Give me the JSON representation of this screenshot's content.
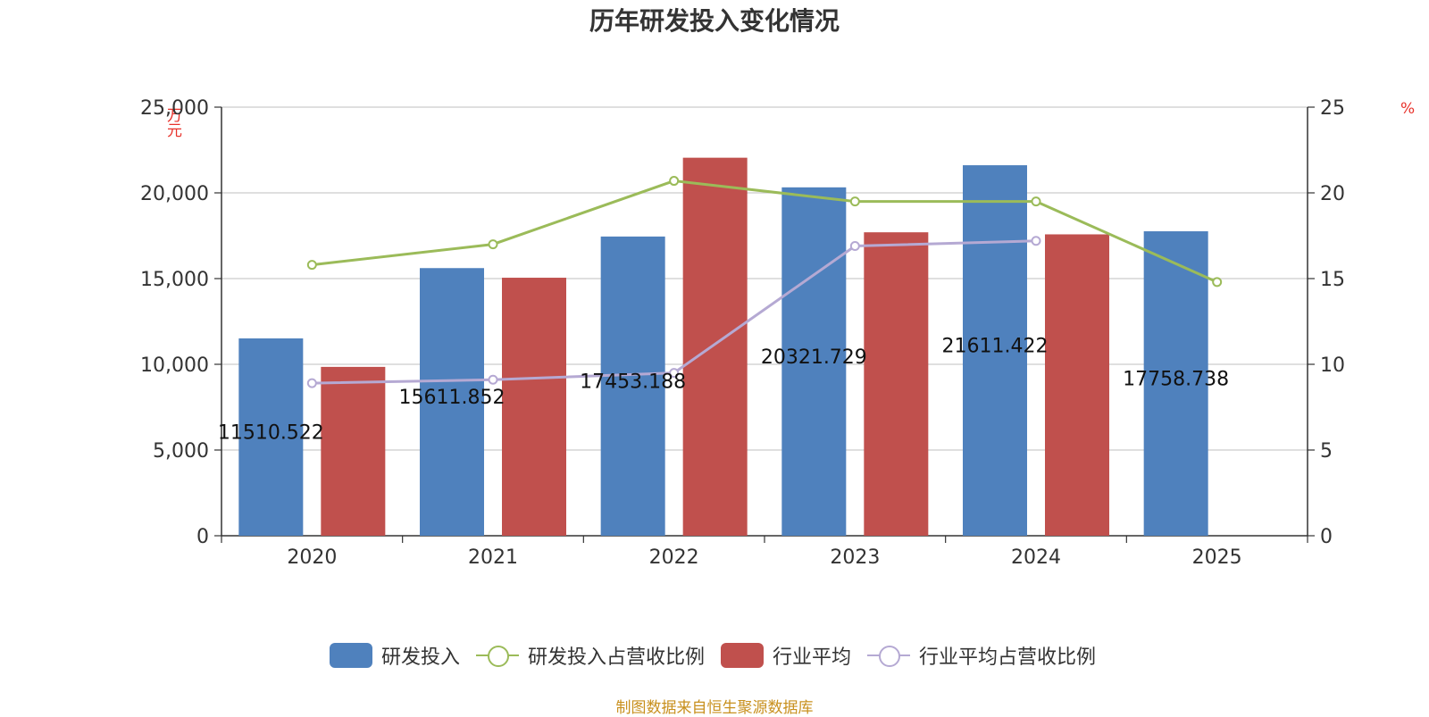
{
  "chart_data": {
    "type": "bar",
    "title": "历年研发投入变化情况",
    "source": "制图数据来自恒生聚源数据库",
    "left_unit": "万元",
    "right_unit": "%",
    "categories": [
      "2020",
      "2021",
      "2022",
      "2023",
      "2024",
      "2025"
    ],
    "y_left": {
      "min": 0,
      "max": 25000,
      "ticks": [
        "0",
        "5,000",
        "10,000",
        "15,000",
        "20,000",
        "25,000"
      ]
    },
    "y_right": {
      "min": 0,
      "max": 25,
      "ticks": [
        "0",
        "5",
        "10",
        "15",
        "20",
        "25"
      ]
    },
    "grid": true,
    "legend_position": "bottom",
    "series": [
      {
        "name": "研发投入",
        "type": "bar",
        "axis": "left",
        "color": "#4f81bd",
        "values": [
          11510.522,
          15611.852,
          17453.188,
          20321.729,
          21611.422,
          17758.738
        ],
        "labels": [
          "11510.522",
          "15611.852",
          "17453.188",
          "20321.729",
          "21611.422",
          "17758.738"
        ]
      },
      {
        "name": "研发投入占营收比例",
        "type": "line",
        "axis": "right",
        "color": "#9bbb59",
        "values": [
          15.8,
          17.0,
          20.7,
          19.5,
          19.5,
          14.8
        ]
      },
      {
        "name": "行业平均",
        "type": "bar",
        "axis": "left",
        "color": "#c0504d",
        "values": [
          9850,
          15050,
          22050,
          17700,
          17580,
          null
        ]
      },
      {
        "name": "行业平均占营收比例",
        "type": "line",
        "axis": "right",
        "color": "#b5a9d3",
        "values": [
          8.9,
          9.1,
          9.5,
          16.9,
          17.2,
          null
        ]
      }
    ]
  }
}
